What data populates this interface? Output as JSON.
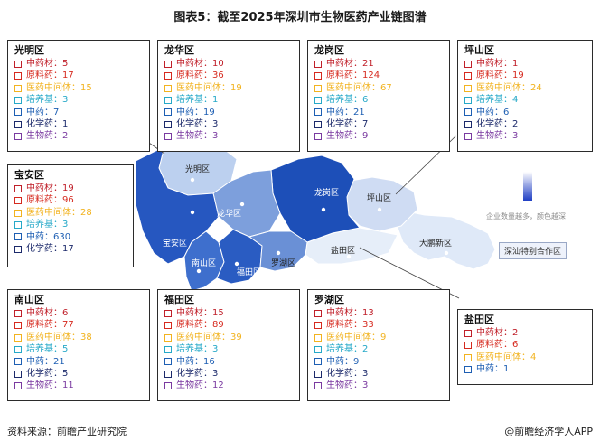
{
  "title": "图表5：截至2025年深圳市生物医药产业链图谱",
  "source": "资料来源：前瞻产业研究院",
  "brand": "@前瞻经济学人APP",
  "legend_text": "企业数量越多，颜色越深",
  "coop_zone": "深汕特别合作区",
  "category_colors": {
    "中药材": "#c0202a",
    "原料药": "#d62a1f",
    "医药中间体": "#f2b320",
    "培养基": "#26a9c8",
    "中药": "#1e5fb3",
    "化学药": "#1c2a6b",
    "生物药": "#7a3aa0"
  },
  "map_labels": {
    "guangming": "光明区",
    "longhua": "龙华区",
    "longgang": "龙岗区",
    "pingshan": "坪山区",
    "baoan": "宝安区",
    "nanshan": "南山区",
    "futian": "福田区",
    "luohu": "罗湖区",
    "yantian": "盐田区",
    "dapeng": "大鹏新区"
  },
  "chart_data": {
    "type": "table",
    "title": "图表5：截至2025年深圳市生物医药产业链图谱",
    "districts": [
      {
        "name": "光明区",
        "items": [
          {
            "label": "中药材",
            "value": 5
          },
          {
            "label": "原料药",
            "value": 17
          },
          {
            "label": "医药中间体",
            "value": 15
          },
          {
            "label": "培养基",
            "value": 3
          },
          {
            "label": "中药",
            "value": 7
          },
          {
            "label": "化学药",
            "value": 1
          },
          {
            "label": "生物药",
            "value": 2
          }
        ]
      },
      {
        "name": "龙华区",
        "items": [
          {
            "label": "中药材",
            "value": 10
          },
          {
            "label": "原料药",
            "value": 36
          },
          {
            "label": "医药中间体",
            "value": 19
          },
          {
            "label": "培养基",
            "value": 1
          },
          {
            "label": "中药",
            "value": 19
          },
          {
            "label": "化学药",
            "value": 3
          },
          {
            "label": "生物药",
            "value": 3
          }
        ]
      },
      {
        "name": "龙岗区",
        "items": [
          {
            "label": "中药材",
            "value": 21
          },
          {
            "label": "原料药",
            "value": 124
          },
          {
            "label": "医药中间体",
            "value": 67
          },
          {
            "label": "培养基",
            "value": 6
          },
          {
            "label": "中药",
            "value": 21
          },
          {
            "label": "化学药",
            "value": 7
          },
          {
            "label": "生物药",
            "value": 9
          }
        ]
      },
      {
        "name": "坪山区",
        "items": [
          {
            "label": "中药材",
            "value": 1
          },
          {
            "label": "原料药",
            "value": 19
          },
          {
            "label": "医药中间体",
            "value": 24
          },
          {
            "label": "培养基",
            "value": 4
          },
          {
            "label": "中药",
            "value": 6
          },
          {
            "label": "化学药",
            "value": 2
          },
          {
            "label": "生物药",
            "value": 3
          }
        ]
      },
      {
        "name": "宝安区",
        "items": [
          {
            "label": "中药材",
            "value": 19
          },
          {
            "label": "原料药",
            "value": 96
          },
          {
            "label": "医药中间体",
            "value": 28
          },
          {
            "label": "培养基",
            "value": 3
          },
          {
            "label": "中药",
            "value": 630
          },
          {
            "label": "化学药",
            "value": 17
          }
        ]
      },
      {
        "name": "南山区",
        "items": [
          {
            "label": "中药材",
            "value": 6
          },
          {
            "label": "原料药",
            "value": 77
          },
          {
            "label": "医药中间体",
            "value": 38
          },
          {
            "label": "培养基",
            "value": 5
          },
          {
            "label": "中药",
            "value": 21
          },
          {
            "label": "化学药",
            "value": 5
          },
          {
            "label": "生物药",
            "value": 11
          }
        ]
      },
      {
        "name": "福田区",
        "items": [
          {
            "label": "中药材",
            "value": 15
          },
          {
            "label": "原料药",
            "value": 89
          },
          {
            "label": "医药中间体",
            "value": 39
          },
          {
            "label": "培养基",
            "value": 3
          },
          {
            "label": "中药",
            "value": 16
          },
          {
            "label": "化学药",
            "value": 3
          },
          {
            "label": "生物药",
            "value": 12
          }
        ]
      },
      {
        "name": "罗湖区",
        "items": [
          {
            "label": "中药材",
            "value": 13
          },
          {
            "label": "原料药",
            "value": 33
          },
          {
            "label": "医药中间体",
            "value": 9
          },
          {
            "label": "培养基",
            "value": 2
          },
          {
            "label": "中药",
            "value": 9
          },
          {
            "label": "化学药",
            "value": 3
          },
          {
            "label": "生物药",
            "value": 3
          }
        ]
      },
      {
        "name": "盐田区",
        "items": [
          {
            "label": "中药材",
            "value": 2
          },
          {
            "label": "原料药",
            "value": 6
          },
          {
            "label": "医药中间体",
            "value": 4
          },
          {
            "label": "中药",
            "value": 1
          }
        ]
      }
    ]
  }
}
